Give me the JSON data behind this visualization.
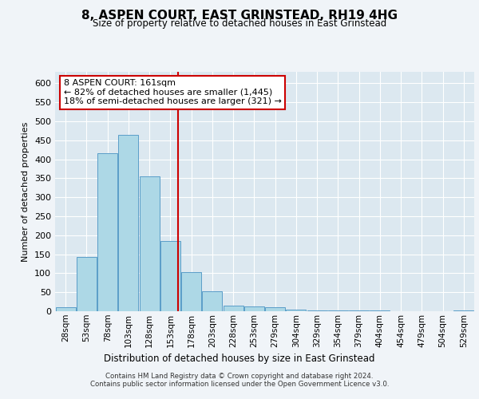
{
  "title": "8, ASPEN COURT, EAST GRINSTEAD, RH19 4HG",
  "subtitle": "Size of property relative to detached houses in East Grinstead",
  "xlabel": "Distribution of detached houses by size in East Grinstead",
  "ylabel": "Number of detached properties",
  "bin_labels": [
    "28sqm",
    "53sqm",
    "78sqm",
    "103sqm",
    "128sqm",
    "153sqm",
    "178sqm",
    "203sqm",
    "228sqm",
    "253sqm",
    "279sqm",
    "304sqm",
    "329sqm",
    "354sqm",
    "379sqm",
    "404sqm",
    "454sqm",
    "479sqm",
    "504sqm",
    "529sqm"
  ],
  "bar_heights": [
    10,
    143,
    415,
    465,
    355,
    185,
    103,
    53,
    15,
    12,
    10,
    5,
    3,
    2,
    2,
    2,
    0,
    0,
    0,
    3
  ],
  "bar_color": "#add8e6",
  "bar_edgecolor": "#5a9dc8",
  "vline_x": 5.36,
  "vline_color": "#cc0000",
  "annotation_text": "8 ASPEN COURT: 161sqm\n← 82% of detached houses are smaller (1,445)\n18% of semi-detached houses are larger (321) →",
  "annotation_box_color": "#ffffff",
  "annotation_box_edgecolor": "#cc0000",
  "ylim": [
    0,
    630
  ],
  "yticks": [
    0,
    50,
    100,
    150,
    200,
    250,
    300,
    350,
    400,
    450,
    500,
    550,
    600
  ],
  "footer_line1": "Contains HM Land Registry data © Crown copyright and database right 2024.",
  "footer_line2": "Contains public sector information licensed under the Open Government Licence v3.0.",
  "fig_bg_color": "#f0f4f8",
  "plot_bg_color": "#dce8f0",
  "n_bins": 20
}
